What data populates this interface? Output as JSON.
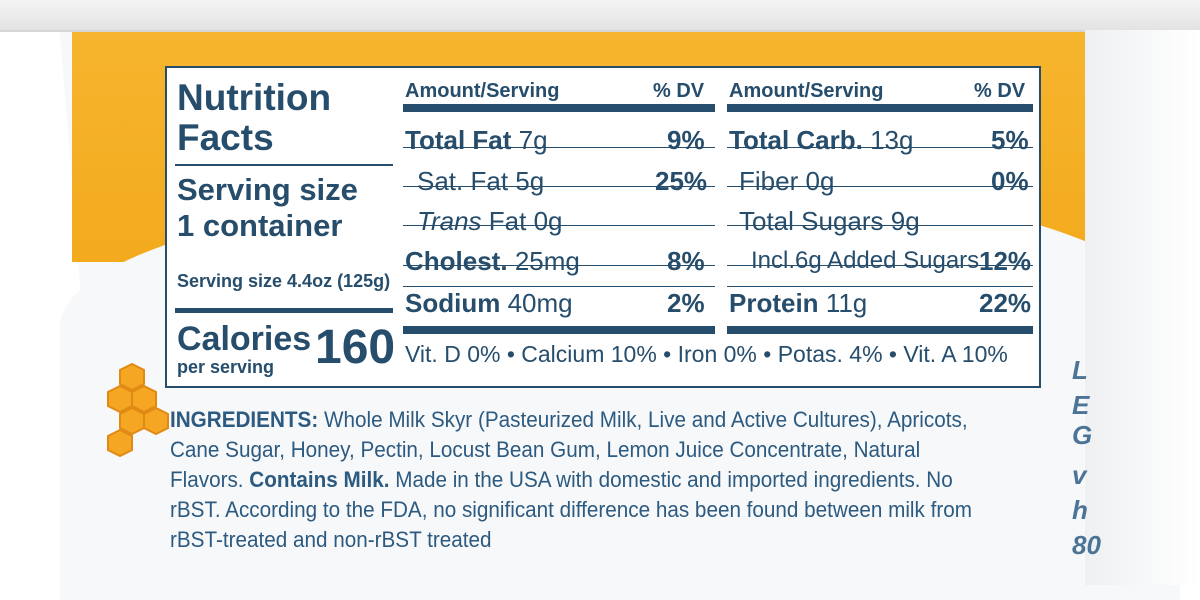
{
  "nutrition": {
    "title_line1": "Nutrition",
    "title_line2": "Facts",
    "serving_big_line1": "Serving size",
    "serving_big_line2": "1 container",
    "serving_small": "Serving size 4.4oz (125g)",
    "calories_label": "Calories",
    "calories_per": "per serving",
    "calories_value": "160",
    "col_header_amount": "Amount/Serving",
    "col_header_dv": "% DV",
    "left_rows": [
      {
        "name": "Total Fat",
        "amount": "7g",
        "dv": "9%"
      },
      {
        "name": "Sat. Fat",
        "amount": "5g",
        "dv": "25%"
      },
      {
        "name_italic": "Trans",
        "name": "Fat",
        "amount": "0g",
        "dv": ""
      },
      {
        "name": "Cholest.",
        "amount": "25mg",
        "dv": "8%"
      },
      {
        "name": "Sodium",
        "amount": "40mg",
        "dv": "2%"
      }
    ],
    "right_rows": [
      {
        "name": "Total Carb.",
        "amount": "13g",
        "dv": "5%"
      },
      {
        "name": "Fiber",
        "amount": "0g",
        "dv": "0%"
      },
      {
        "name": "Total Sugars",
        "amount": "9g",
        "dv": ""
      },
      {
        "name": "Incl.6g Added Sugars",
        "amount": "",
        "dv": "12%"
      },
      {
        "name": "Protein",
        "amount": "11g",
        "dv": "22%"
      }
    ],
    "vitamins": "Vit. D 0% • Calcium 10% • Iron 0% • Potas. 4% • Vit. A 10%"
  },
  "ingredients": {
    "label": "INGREDIENTS:",
    "text": " Whole Milk Skyr (Pasteurized Milk, Live and Active Cultures), Apricots, Cane Sugar, Honey, Pectin, Locust Bean Gum, Lemon Juice Concentrate, Natural Flavors. ",
    "contains": "Contains Milk.",
    "made_in": " Made in the USA with domestic and imported ingredients. No rBST. According to the FDA, no significant difference has been found between milk from rBST-treated and non-rBST treated"
  },
  "side_letters": [
    "L",
    "E",
    "G",
    "v",
    "h",
    "80"
  ],
  "colors": {
    "ink": "#264d6b",
    "label_orange": "#f3aa1d",
    "honey": "#f5a623"
  },
  "icons": {
    "honeycomb": "honeycomb-icon"
  }
}
